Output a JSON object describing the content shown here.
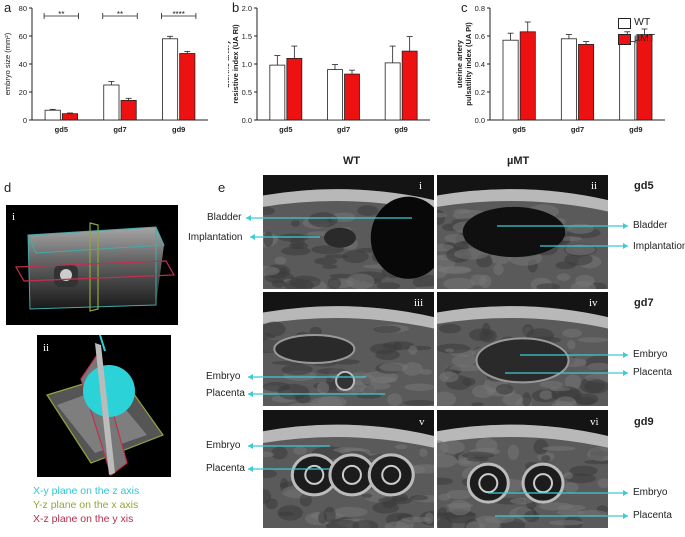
{
  "panels": {
    "a": "a",
    "b": "b",
    "c": "c",
    "d": "d",
    "e": "e"
  },
  "colors": {
    "wt": "#ffffff",
    "umt": "#ee1111",
    "cyan": "#33c6d6",
    "arrow": "#3ccbd8",
    "green": "#8fa83a",
    "red": "#b0304d"
  },
  "chart_data": [
    {
      "type": "bar",
      "panel": "a",
      "categories": [
        "gd5",
        "gd7",
        "gd9"
      ],
      "ylabel": "embryo size (mm²)",
      "ylim": [
        0,
        80
      ],
      "yticks": [
        0,
        20,
        40,
        60,
        80
      ],
      "series": [
        {
          "name": "WT",
          "values": [
            7,
            25,
            58
          ],
          "err": [
            0.6,
            2.5,
            1.8
          ]
        },
        {
          "name": "µMT",
          "values": [
            4.5,
            14,
            47.5
          ],
          "err": [
            0.5,
            1.5,
            1.5
          ]
        }
      ],
      "significance": [
        "**",
        "**",
        "****"
      ]
    },
    {
      "type": "bar",
      "panel": "b",
      "categories": [
        "gd5",
        "gd7",
        "gd9"
      ],
      "ylabel": "uterine artery resistive index (UA RI)",
      "ylim": [
        0,
        2.0
      ],
      "yticks": [
        "0.0",
        "0.5",
        "1.0",
        "1.5",
        "2.0"
      ],
      "series": [
        {
          "name": "WT",
          "values": [
            0.98,
            0.9,
            1.02
          ],
          "err": [
            0.17,
            0.09,
            0.3
          ]
        },
        {
          "name": "µMT",
          "values": [
            1.1,
            0.82,
            1.23
          ],
          "err": [
            0.22,
            0.07,
            0.26
          ]
        }
      ]
    },
    {
      "type": "bar",
      "panel": "c",
      "categories": [
        "gd5",
        "gd7",
        "gd9"
      ],
      "ylabel": "uterine artery pulsatility index (UA PI)",
      "ylim": [
        0,
        0.8
      ],
      "yticks": [
        "0.0",
        "0.2",
        "0.4",
        "0.6",
        "0.8"
      ],
      "series": [
        {
          "name": "WT",
          "values": [
            0.57,
            0.58,
            0.56
          ],
          "err": [
            0.05,
            0.03,
            0.07
          ]
        },
        {
          "name": "µMT",
          "values": [
            0.63,
            0.54,
            0.61
          ],
          "err": [
            0.07,
            0.02,
            0.04
          ]
        }
      ]
    }
  ],
  "legend": {
    "wt": "WT",
    "umt": "µMT"
  },
  "panel_d": {
    "sub_i": "i",
    "sub_ii": "ii",
    "planes": [
      "X-y plane on the z axis",
      "Y-z plane on the x axis",
      "X-z plane on the y xis"
    ]
  },
  "panel_e": {
    "col_wt": "WT",
    "col_umt": "µMT",
    "rows": [
      {
        "gd": "gd5",
        "left_num": "i",
        "right_num": "ii",
        "left_labels": [
          "Bladder",
          "Implantation"
        ],
        "right_labels": [
          "Bladder",
          "Implantation"
        ]
      },
      {
        "gd": "gd7",
        "left_num": "iii",
        "right_num": "iv",
        "left_labels": [
          "Embryo",
          "Placenta"
        ],
        "right_labels": [
          "Embryo",
          "Placenta"
        ]
      },
      {
        "gd": "gd9",
        "left_num": "v",
        "right_num": "vi",
        "left_labels": [
          "Embryo",
          "Placenta"
        ],
        "right_labels": [
          "Embryo",
          "Placenta"
        ]
      }
    ]
  }
}
